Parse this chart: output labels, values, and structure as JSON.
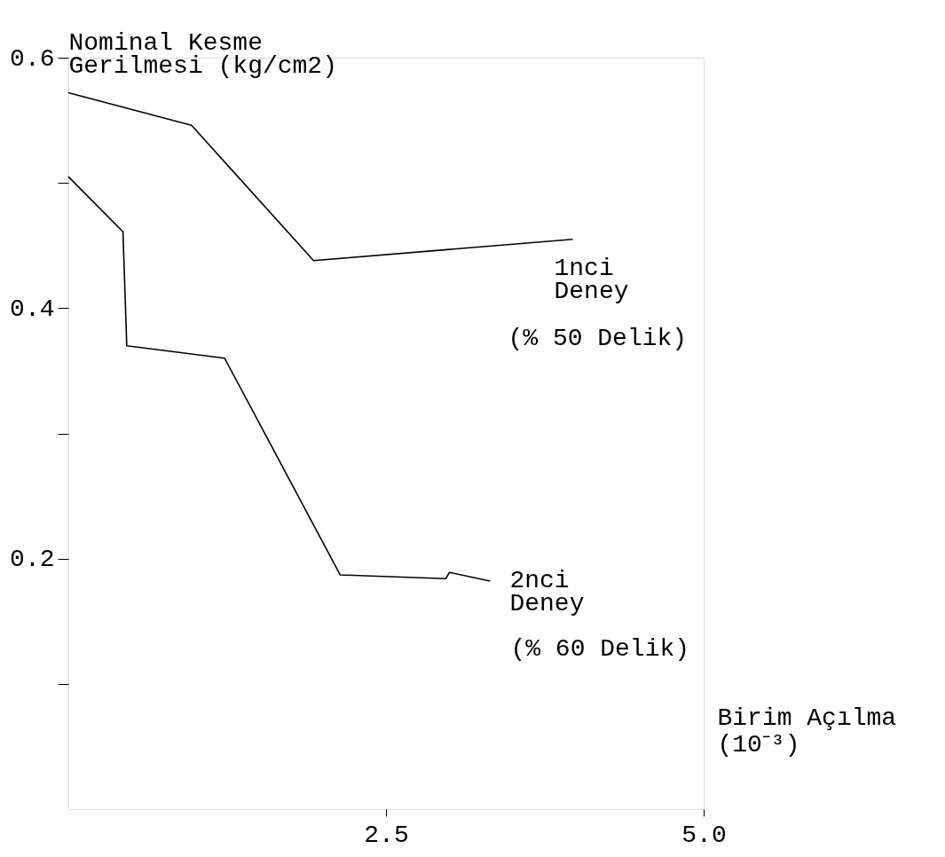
{
  "chart_data": {
    "type": "line",
    "xlabel": "Birim Açılma\n(10⁻³)",
    "ylabel": "Nominal Kesme\nGerilmesi (kg/cm2)",
    "series": [
      {
        "name": "1nci Deney",
        "color": "#000000",
        "x": [
          0,
          0.97,
          1.93,
          3.97
        ],
        "values": [
          0.572,
          0.546,
          0.438,
          0.455
        ]
      },
      {
        "name": "2nci Deney",
        "color": "#000000",
        "x": [
          0,
          0.43,
          0.46,
          1.23,
          2.14,
          2.97,
          3.0,
          3.32
        ],
        "values": [
          0.505,
          0.461,
          0.37,
          0.36,
          0.187,
          0.184,
          0.189,
          0.182
        ]
      }
    ],
    "xlim": [
      0,
      5
    ],
    "ylim": [
      0,
      0.6
    ],
    "xticks": [
      2.5,
      {
        "value": 5,
        "label": "5.0"
      }
    ],
    "yticks": [
      {
        "value": 0.1,
        "label": null
      },
      0.2,
      {
        "value": 0.3,
        "label": null
      },
      0.4,
      {
        "value": 0.5,
        "label": null
      },
      0.6
    ],
    "annotations": [
      "(% 50 Delik)",
      "(% 60 Delik)"
    ],
    "grid": false,
    "marker": "none",
    "line_style": "solid"
  }
}
